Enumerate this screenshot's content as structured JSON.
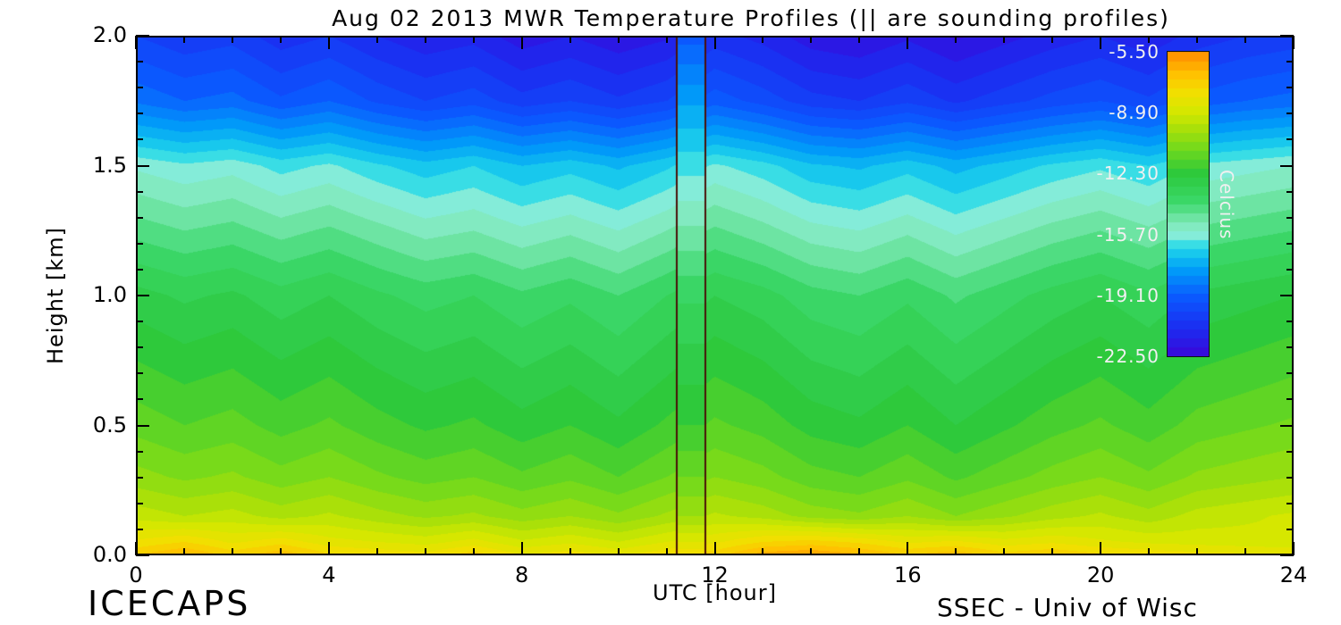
{
  "title": "Aug 02 2013 MWR Temperature Profiles (|| are sounding profiles)",
  "footer": {
    "left": "ICECAPS",
    "right": "SSEC - Univ of Wisc"
  },
  "axes": {
    "x": {
      "label": "UTC [hour]",
      "min": 0,
      "max": 24,
      "tick_labels": [
        "0",
        "4",
        "8",
        "12",
        "16",
        "20",
        "24"
      ],
      "minor_step_hours": 1
    },
    "y": {
      "label": "Height [km]",
      "min": 0,
      "max": 2,
      "tick_labels": [
        "0.0",
        "0.5",
        "1.0",
        "1.5",
        "2.0"
      ],
      "minor_step_km": 0.1
    }
  },
  "colorbar": {
    "label": "Celcius",
    "tick_labels": [
      "-5.50",
      "-8.90",
      "-12.30",
      "-15.70",
      "-19.10",
      "-22.50"
    ],
    "max": -5.5,
    "min": -22.5,
    "stops": [
      [
        -22.5,
        "#3a06d8"
      ],
      [
        -21.0,
        "#1c2bf0"
      ],
      [
        -19.1,
        "#0a5cff"
      ],
      [
        -17.6,
        "#00a0f8"
      ],
      [
        -16.4,
        "#22d8e8"
      ],
      [
        -15.7,
        "#8ceed8"
      ],
      [
        -15.0,
        "#7ce8b4"
      ],
      [
        -13.9,
        "#3cd86a"
      ],
      [
        -12.3,
        "#2cc83c"
      ],
      [
        -11.0,
        "#6cd81e"
      ],
      [
        -9.8,
        "#a8e00a"
      ],
      [
        -8.9,
        "#d2e800"
      ],
      [
        -7.8,
        "#f0e000"
      ],
      [
        -6.8,
        "#ffc400"
      ],
      [
        -5.5,
        "#ff8c00"
      ]
    ]
  },
  "chart_data": {
    "type": "heatmap",
    "x_hours": [
      0,
      1,
      2,
      3,
      4,
      5,
      6,
      7,
      8,
      9,
      10,
      11,
      12,
      13,
      14,
      15,
      16,
      17,
      18,
      19,
      20,
      21,
      22,
      23,
      24
    ],
    "heights": [
      0,
      0.05,
      0.15,
      0.3,
      0.5,
      0.75,
      1.0,
      1.25,
      1.5,
      1.75,
      2.0
    ],
    "temperature_c": [
      [
        -7.0,
        -6.4,
        -7.2,
        -6.6,
        -7.4,
        -7.6,
        -7.8,
        -7.2,
        -8.0,
        -7.7,
        -8.1,
        -7.6,
        -7.2,
        -6.2,
        -6.0,
        -6.4,
        -7.0,
        -6.6,
        -7.3,
        -7.0,
        -7.4,
        -7.6,
        -7.8,
        -7.9,
        -8.0
      ],
      [
        -7.9,
        -7.5,
        -8.1,
        -7.7,
        -8.3,
        -8.5,
        -8.7,
        -8.3,
        -8.9,
        -8.6,
        -9.0,
        -8.5,
        -8.1,
        -7.5,
        -7.3,
        -7.6,
        -8.1,
        -7.9,
        -8.3,
        -8.1,
        -8.4,
        -8.6,
        -8.7,
        -8.8,
        -8.9
      ],
      [
        -9.2,
        -9.5,
        -9.3,
        -9.7,
        -9.4,
        -9.8,
        -10.1,
        -9.9,
        -10.3,
        -10.0,
        -10.4,
        -9.9,
        -9.4,
        -9.7,
        -10.2,
        -10.4,
        -10.0,
        -10.5,
        -10.1,
        -9.7,
        -9.4,
        -9.8,
        -9.3,
        -9.1,
        -8.9
      ],
      [
        -10.3,
        -10.6,
        -10.4,
        -10.8,
        -10.5,
        -10.9,
        -11.2,
        -11.0,
        -11.4,
        -11.1,
        -11.5,
        -11.0,
        -10.5,
        -10.8,
        -11.3,
        -11.5,
        -11.1,
        -11.6,
        -11.2,
        -10.8,
        -10.5,
        -10.9,
        -10.4,
        -10.2,
        -10.0
      ],
      [
        -11.2,
        -11.5,
        -11.3,
        -11.7,
        -11.4,
        -11.8,
        -12.1,
        -11.9,
        -12.3,
        -12.0,
        -12.4,
        -11.9,
        -11.4,
        -11.7,
        -12.2,
        -12.4,
        -12.0,
        -12.5,
        -12.1,
        -11.7,
        -11.4,
        -11.8,
        -11.3,
        -11.1,
        -10.9
      ],
      [
        -12.0,
        -12.3,
        -12.1,
        -12.5,
        -12.2,
        -12.6,
        -12.9,
        -12.7,
        -13.1,
        -12.8,
        -13.2,
        -12.7,
        -12.2,
        -12.5,
        -13.0,
        -13.2,
        -12.8,
        -13.3,
        -12.9,
        -12.5,
        -12.2,
        -12.6,
        -12.1,
        -11.9,
        -11.7
      ],
      [
        -12.8,
        -13.1,
        -12.9,
        -13.3,
        -13.0,
        -13.4,
        -13.7,
        -13.5,
        -13.9,
        -13.6,
        -14.0,
        -13.5,
        -13.0,
        -13.3,
        -13.8,
        -14.0,
        -13.6,
        -14.1,
        -13.7,
        -13.3,
        -13.0,
        -13.4,
        -12.9,
        -12.7,
        -12.5
      ],
      [
        -14.2,
        -14.5,
        -14.3,
        -14.7,
        -14.4,
        -14.8,
        -15.2,
        -15.0,
        -15.4,
        -15.1,
        -15.5,
        -15.0,
        -14.4,
        -14.8,
        -15.3,
        -15.5,
        -15.1,
        -15.6,
        -15.2,
        -14.8,
        -14.5,
        -14.9,
        -14.4,
        -14.2,
        -14.0
      ],
      [
        -15.6,
        -15.9,
        -15.7,
        -16.2,
        -15.9,
        -16.4,
        -16.8,
        -16.5,
        -17.0,
        -16.7,
        -17.1,
        -16.6,
        -15.9,
        -16.3,
        -16.9,
        -17.1,
        -16.7,
        -17.2,
        -16.8,
        -16.4,
        -16.1,
        -16.5,
        -15.9,
        -15.7,
        -15.5
      ],
      [
        -18.6,
        -19.0,
        -18.8,
        -19.4,
        -19.0,
        -19.6,
        -20.0,
        -19.7,
        -20.3,
        -20.0,
        -20.4,
        -20.0,
        -19.2,
        -19.7,
        -20.3,
        -20.5,
        -20.1,
        -20.6,
        -20.2,
        -19.8,
        -19.5,
        -19.9,
        -19.3,
        -19.0,
        -18.8
      ],
      [
        -20.0,
        -20.4,
        -20.2,
        -20.8,
        -20.5,
        -21.0,
        -21.4,
        -21.2,
        -21.8,
        -21.5,
        -21.9,
        -21.6,
        -20.8,
        -21.2,
        -21.8,
        -22.0,
        -21.6,
        -22.1,
        -21.7,
        -21.3,
        -21.0,
        -21.4,
        -20.8,
        -20.5,
        -20.3
      ]
    ],
    "contour_step": 0.5,
    "sounding": {
      "hours": [
        11.2,
        11.8
      ],
      "line_color": "#4a1008",
      "profile": [
        -7.6,
        -8.5,
        -10.0,
        -11.0,
        -12.0,
        -12.8,
        -13.6,
        -14.9,
        -16.2,
        -17.6,
        -19.2
      ]
    }
  }
}
